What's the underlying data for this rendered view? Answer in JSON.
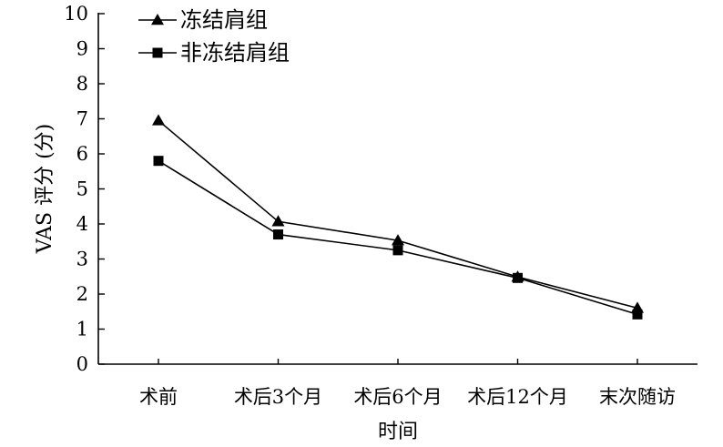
{
  "chart_data": {
    "type": "line",
    "categories": [
      "术前",
      "术后3个月",
      "术后6个月",
      "术后12个月",
      "末次随访"
    ],
    "series": [
      {
        "name": "冻结肩组",
        "marker": "triangle",
        "values": [
          6.95,
          4.07,
          3.53,
          2.49,
          1.6
        ]
      },
      {
        "name": "非冻结肩组",
        "marker": "square",
        "values": [
          5.8,
          3.7,
          3.25,
          2.46,
          1.42
        ]
      }
    ],
    "xlabel": "时间",
    "ylabel": "VAS 评分 (分)",
    "ylim": [
      0,
      10
    ],
    "yticks": [
      "0",
      "1",
      "2",
      "3",
      "4",
      "5",
      "6",
      "7",
      "8",
      "9",
      "10"
    ],
    "grid": false,
    "legend_position": "top-left",
    "line_color": "#000000"
  }
}
